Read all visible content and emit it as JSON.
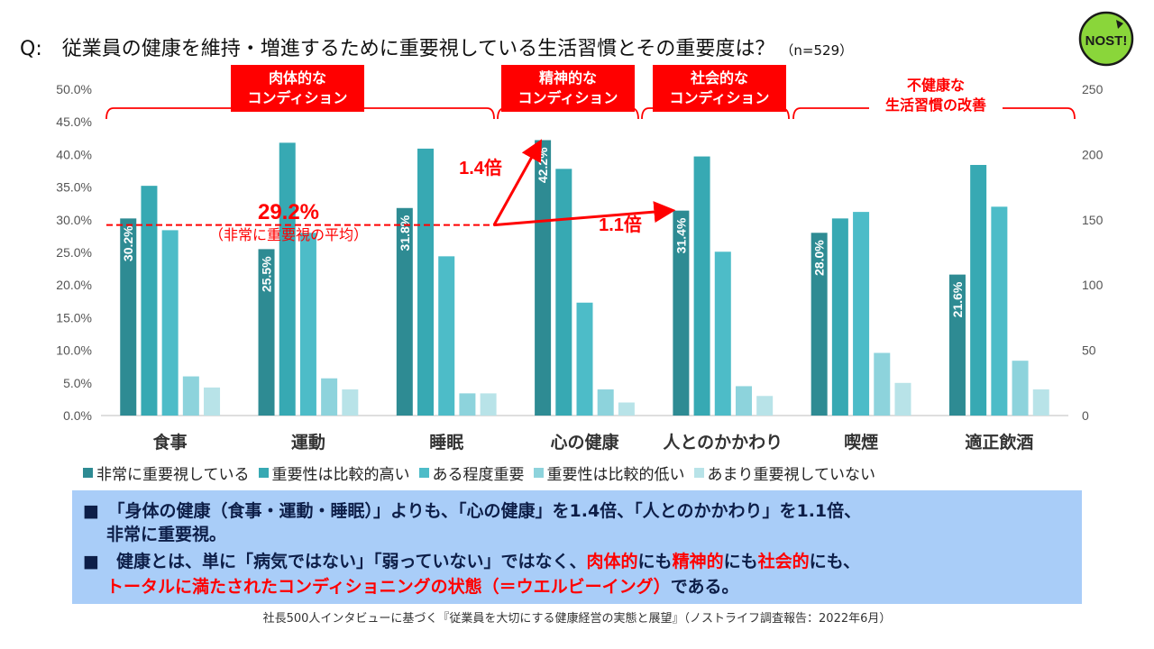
{
  "title": {
    "question": "Q:　従業員の健康を維持・増進するために重要視している生活習慣とその重要度は？",
    "sample": "（n=529）"
  },
  "logo": {
    "text": "NOST!",
    "colors": {
      "fill": "#8ad63a",
      "ring": "#1a1a1a"
    }
  },
  "groups": [
    {
      "badge_lines": [
        "肉体的な",
        "コンディション"
      ],
      "style": "box"
    },
    {
      "badge_lines": [
        "精神的な",
        "コンディション"
      ],
      "style": "box"
    },
    {
      "badge_lines": [
        "社会的な",
        "コンディション"
      ],
      "style": "box"
    },
    {
      "badge_lines": [
        "不健康な",
        "生活習慣の改善"
      ],
      "style": "plain"
    }
  ],
  "annotations": {
    "average_value": "29.2%",
    "average_label": "（非常に重要視の平均）",
    "ratio_mental": "1.4倍",
    "ratio_social": "1.1倍"
  },
  "chart_data": {
    "type": "bar",
    "categories": [
      "食事",
      "運動",
      "睡眠",
      "心の健康",
      "人とのかかわり",
      "喫煙",
      "適正飲酒"
    ],
    "y_left": {
      "ticks": [
        "0.0%",
        "5.0%",
        "10.0%",
        "15.0%",
        "20.0%",
        "25.0%",
        "30.0%",
        "35.0%",
        "40.0%",
        "45.0%",
        "50.0%"
      ],
      "ylim": [
        0,
        50
      ]
    },
    "y_right": {
      "ticks": [
        "0",
        "50",
        "100",
        "150",
        "200",
        "250"
      ],
      "ylim": [
        0,
        250
      ]
    },
    "series": [
      {
        "name": "非常に重要視している",
        "color": "#2e8b93",
        "values": [
          30.2,
          25.5,
          31.8,
          42.2,
          31.4,
          28.0,
          21.6
        ],
        "labels": [
          "30.2%",
          "25.5%",
          "31.8%",
          "42.2%",
          "31.4%",
          "28.0%",
          "21.6%"
        ]
      },
      {
        "name": "重要性は比較的高い",
        "color": "#37a9b3",
        "values": [
          35.2,
          41.8,
          40.9,
          37.8,
          39.7,
          30.2,
          38.4
        ]
      },
      {
        "name": "ある程度重要",
        "color": "#4dbcc8",
        "values": [
          28.4,
          28.0,
          24.4,
          17.3,
          25.1,
          31.2,
          32.0
        ]
      },
      {
        "name": "重要性は比較的低い",
        "color": "#8dd3dc",
        "values": [
          6.0,
          5.7,
          3.4,
          4.0,
          4.5,
          9.6,
          8.4
        ]
      },
      {
        "name": "あまり重要視していない",
        "color": "#b8e3e8",
        "values": [
          4.3,
          4.0,
          3.4,
          2.0,
          3.0,
          5.0,
          4.0
        ]
      }
    ],
    "average_line": 29.2,
    "grid": false,
    "legend": "bottom"
  },
  "summary": {
    "bullet1_a": "「身体の健康（食事・運動・睡眠）」よりも、「心の健康」を1.4倍、「人とのかかわり」を1.1倍、",
    "bullet1_b": "非常に重要視。",
    "bullet2_pre": "健康とは、単に「病気ではない」「弱っていない」ではなく、",
    "bullet2_red1": "肉体的",
    "bullet2_mid1": "にも",
    "bullet2_red2": "精神的",
    "bullet2_mid2": "にも",
    "bullet2_red3": "社会的",
    "bullet2_end": "にも、",
    "bullet2_line2_red": "トータルに満たされたコンディショニングの状態（＝ウエルビーイング）",
    "bullet2_line2_end": "である。",
    "bullet_mark": "■"
  },
  "source": "社長500人インタビューに基づく『従業員を大切にする健康経営の実態と展望』（ノストライフ調査報告：2022年6月）"
}
